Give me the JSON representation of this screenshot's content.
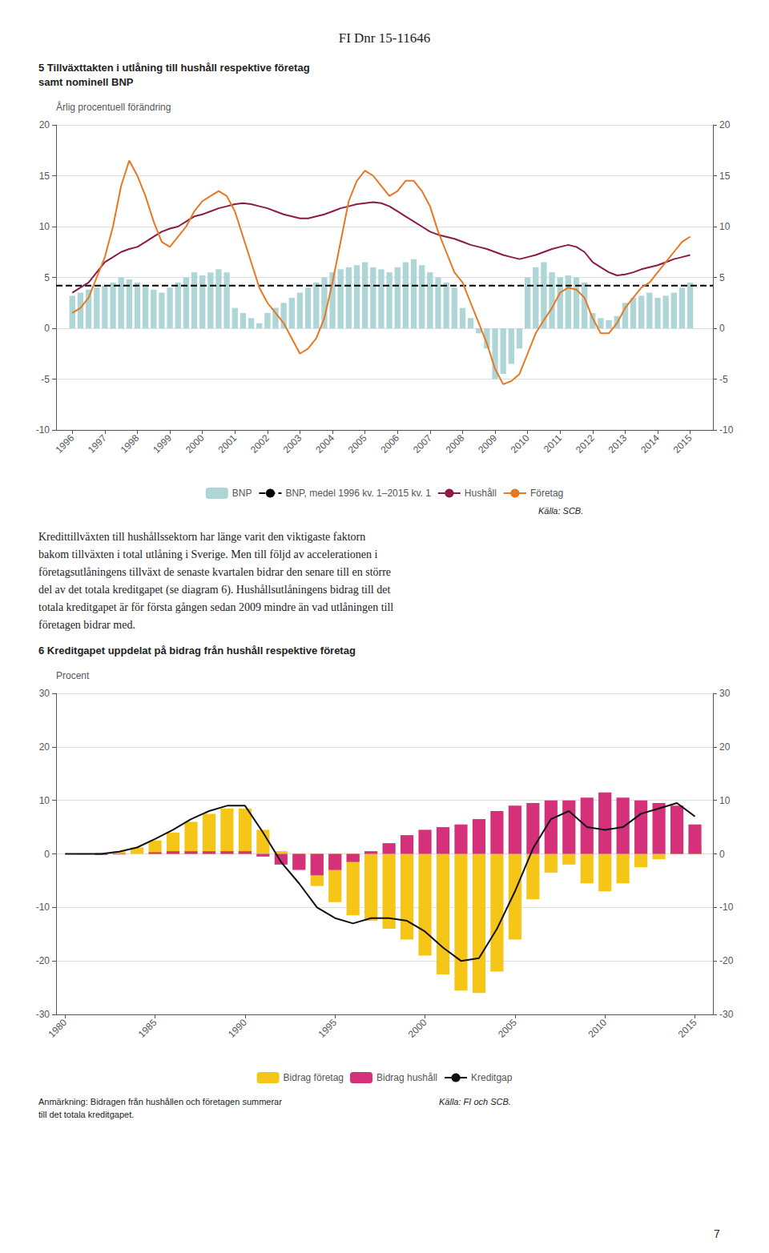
{
  "page_title": "FI Dnr 15-11646",
  "text": [
    "Kredittillväxten till hushållssektorn har länge varit den viktigaste faktorn",
    "bakom tillväxten i total utlåning i Sverige. Men till följd av accelerationen i",
    "företagsutlåningens tillväxt de senaste kvartalen bidrar den senare till en större",
    "del av det totala kreditgapet (se diagram 6). Hushållsutlåningens bidrag till det",
    "totala kreditgapet är för första gången sedan 2009 mindre än vad utlåningen till",
    "företagen bidrar med."
  ],
  "page_number": 7,
  "chart_data": [
    {
      "type": "bar",
      "title": "5 Tillväxttakten i utlåning till hushåll respektive företag\nsamt nominell BNP",
      "y_label": "Årlig procentuell förändring",
      "source": "Källa: SCB.",
      "x": [
        1996.0,
        1996.25,
        1996.5,
        1996.75,
        1997.0,
        1997.25,
        1997.5,
        1997.75,
        1998.0,
        1998.25,
        1998.5,
        1998.75,
        1999.0,
        1999.25,
        1999.5,
        1999.75,
        2000.0,
        2000.25,
        2000.5,
        2000.75,
        2001.0,
        2001.25,
        2001.5,
        2001.75,
        2002.0,
        2002.25,
        2002.5,
        2002.75,
        2003.0,
        2003.25,
        2003.5,
        2003.75,
        2004.0,
        2004.25,
        2004.5,
        2004.75,
        2005.0,
        2005.25,
        2005.5,
        2005.75,
        2006.0,
        2006.25,
        2006.5,
        2006.75,
        2007.0,
        2007.25,
        2007.5,
        2007.75,
        2008.0,
        2008.25,
        2008.5,
        2008.75,
        2009.0,
        2009.25,
        2009.5,
        2009.75,
        2010.0,
        2010.25,
        2010.5,
        2010.75,
        2011.0,
        2011.25,
        2011.5,
        2011.75,
        2012.0,
        2012.25,
        2012.5,
        2012.75,
        2013.0,
        2013.25,
        2013.5,
        2013.75,
        2014.0,
        2014.25,
        2014.5,
        2014.75,
        2015.0
      ],
      "xlim": [
        1995.5,
        2015.7
      ],
      "xticks": [
        1996,
        1997,
        1998,
        1999,
        2000,
        2001,
        2002,
        2003,
        2004,
        2005,
        2006,
        2007,
        2008,
        2009,
        2010,
        2011,
        2012,
        2013,
        2014,
        2015
      ],
      "ylim": [
        -10,
        20
      ],
      "yticks": [
        -10,
        -5,
        0,
        5,
        10,
        15,
        20
      ],
      "y2lim": [
        -10,
        20
      ],
      "y2ticks": [
        -10,
        -5,
        0,
        5,
        10,
        15,
        20
      ],
      "grid": true,
      "legend": "bottom",
      "series": [
        {
          "name": "BNP",
          "type": "bar",
          "color": "#aed6d6",
          "values": [
            3.2,
            3.5,
            3.8,
            4.0,
            4.2,
            4.5,
            5.0,
            4.8,
            4.5,
            4.2,
            3.8,
            3.5,
            4.0,
            4.5,
            5.0,
            5.5,
            5.2,
            5.5,
            5.8,
            5.5,
            2.0,
            1.5,
            1.0,
            0.5,
            1.5,
            2.0,
            2.5,
            3.0,
            3.5,
            4.0,
            4.5,
            5.0,
            5.5,
            5.8,
            6.0,
            6.2,
            6.5,
            6.0,
            5.8,
            5.5,
            6.0,
            6.5,
            6.8,
            6.2,
            5.5,
            5.0,
            4.5,
            4.0,
            2.0,
            1.0,
            -0.5,
            -2.0,
            -5.0,
            -4.5,
            -3.5,
            -2.0,
            5.0,
            6.0,
            6.5,
            5.5,
            5.0,
            5.2,
            5.0,
            4.5,
            1.5,
            1.0,
            0.8,
            1.2,
            2.5,
            3.0,
            3.2,
            3.5,
            3.0,
            3.2,
            3.5,
            4.0,
            4.5
          ]
        },
        {
          "name": "BNP, medel 1996 kv. 1–2015 kv. 1",
          "type": "hline",
          "line_style": "dashed",
          "color": "#000000",
          "value": 4.2
        },
        {
          "name": "Hushåll",
          "type": "line",
          "color": "#8b1a4a",
          "values": [
            3.5,
            4.0,
            4.5,
            5.5,
            6.5,
            7.0,
            7.5,
            7.8,
            8.0,
            8.5,
            9.0,
            9.5,
            9.8,
            10.0,
            10.5,
            11.0,
            11.2,
            11.5,
            11.8,
            12.0,
            12.2,
            12.3,
            12.2,
            12.0,
            11.8,
            11.5,
            11.2,
            11.0,
            10.8,
            10.8,
            11.0,
            11.2,
            11.5,
            11.8,
            12.0,
            12.2,
            12.3,
            12.4,
            12.3,
            12.0,
            11.5,
            11.0,
            10.5,
            10.0,
            9.5,
            9.2,
            9.0,
            8.8,
            8.5,
            8.2,
            8.0,
            7.8,
            7.5,
            7.2,
            7.0,
            6.8,
            7.0,
            7.2,
            7.5,
            7.8,
            8.0,
            8.2,
            8.0,
            7.5,
            6.5,
            6.0,
            5.5,
            5.2,
            5.3,
            5.5,
            5.8,
            6.0,
            6.2,
            6.5,
            6.8,
            7.0,
            7.2
          ]
        },
        {
          "name": "Företag",
          "type": "line",
          "color": "#e87722",
          "values": [
            1.5,
            2.0,
            3.0,
            5.0,
            7.0,
            10.0,
            14.0,
            16.5,
            15.0,
            13.0,
            10.5,
            8.5,
            8.0,
            9.0,
            10.0,
            11.5,
            12.5,
            13.0,
            13.5,
            13.0,
            11.5,
            9.0,
            6.5,
            4.0,
            2.5,
            1.5,
            0.5,
            -1.0,
            -2.5,
            -2.0,
            -1.0,
            1.0,
            4.5,
            8.5,
            12.5,
            14.5,
            15.5,
            15.0,
            14.0,
            13.0,
            13.5,
            14.5,
            14.5,
            13.5,
            12.0,
            9.5,
            7.5,
            5.5,
            4.5,
            2.5,
            0.5,
            -1.5,
            -4.0,
            -5.5,
            -5.2,
            -4.5,
            -2.5,
            -0.5,
            0.8,
            2.0,
            3.5,
            4.0,
            3.8,
            3.0,
            1.0,
            -0.5,
            -0.5,
            0.5,
            2.0,
            3.0,
            4.0,
            4.5,
            5.5,
            6.5,
            7.5,
            8.5,
            9.0
          ]
        }
      ]
    },
    {
      "type": "bar",
      "title": "6 Kreditgapet uppdelat på bidrag från hushåll respektive företag",
      "y_label": "Procent",
      "source": "Källa: FI och SCB.",
      "note": "Anmärkning: Bidragen från hushållen och företagen summerar\ntill det totala kreditgapet.",
      "x": [
        1980,
        1981,
        1982,
        1983,
        1984,
        1985,
        1986,
        1987,
        1988,
        1989,
        1990,
        1991,
        1992,
        1993,
        1994,
        1995,
        1996,
        1997,
        1998,
        1999,
        2000,
        2001,
        2002,
        2003,
        2004,
        2005,
        2006,
        2007,
        2008,
        2009,
        2010,
        2011,
        2012,
        2013,
        2014,
        2015
      ],
      "xlim": [
        1979.5,
        2016.0
      ],
      "xticks": [
        1980,
        1985,
        1990,
        1995,
        2000,
        2005,
        2010,
        2015
      ],
      "ylim": [
        -30,
        30
      ],
      "yticks": [
        -30,
        -20,
        -10,
        0,
        10,
        20,
        30
      ],
      "y2lim": [
        -30,
        30
      ],
      "y2ticks": [
        -30,
        -20,
        -10,
        0,
        10,
        20,
        30
      ],
      "grid": true,
      "legend": "bottom",
      "series": [
        {
          "name": "Bidrag företag",
          "type": "bar",
          "color": "#f5c518",
          "values": [
            0.0,
            0.1,
            0.2,
            0.5,
            1.2,
            2.5,
            4.0,
            6.0,
            7.5,
            8.5,
            8.5,
            4.5,
            0.5,
            -2.5,
            -6.0,
            -9.0,
            -11.5,
            -12.5,
            -14.0,
            -16.0,
            -19.0,
            -22.5,
            -25.5,
            -26.0,
            -22.0,
            -16.0,
            -8.5,
            -3.5,
            -2.0,
            -5.5,
            -7.0,
            -5.5,
            -2.5,
            -1.0,
            0.5,
            1.5
          ]
        },
        {
          "name": "Bidrag hushåll",
          "type": "bar",
          "color": "#d4317a",
          "values": [
            0.0,
            -0.1,
            -0.2,
            -0.1,
            0.0,
            0.3,
            0.5,
            0.5,
            0.5,
            0.5,
            0.5,
            -0.5,
            -2.0,
            -3.0,
            -4.0,
            -3.0,
            -1.5,
            0.5,
            2.0,
            3.5,
            4.5,
            5.0,
            5.5,
            6.5,
            8.0,
            9.0,
            9.5,
            10.0,
            10.0,
            10.5,
            11.5,
            10.5,
            10.0,
            9.5,
            9.0,
            5.5
          ]
        },
        {
          "name": "Kreditgap",
          "type": "line",
          "color": "#111111",
          "values": [
            0.0,
            0.0,
            0.0,
            0.4,
            1.2,
            2.8,
            4.5,
            6.5,
            8.0,
            9.0,
            9.0,
            4.0,
            -1.5,
            -5.5,
            -10.0,
            -12.0,
            -13.0,
            -12.0,
            -12.0,
            -12.5,
            -14.5,
            -17.5,
            -20.0,
            -19.5,
            -14.0,
            -7.0,
            1.0,
            6.5,
            8.0,
            5.0,
            4.5,
            5.0,
            7.5,
            8.5,
            9.5,
            7.0
          ]
        }
      ]
    }
  ]
}
